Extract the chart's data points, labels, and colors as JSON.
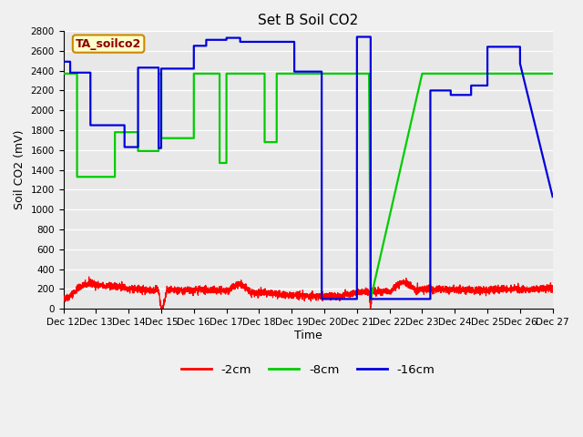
{
  "title": "Set B Soil CO2",
  "ylabel": "Soil CO2 (mV)",
  "xlabel": "Time",
  "legend_label": "TA_soilco2",
  "series_labels": [
    "-2cm",
    "-8cm",
    "-16cm"
  ],
  "series_colors": [
    "#ff0000",
    "#00cc00",
    "#0000dd"
  ],
  "background_color": "#e8e8e8",
  "fig_background": "#f0f0f0",
  "ylim": [
    0,
    2800
  ],
  "xlim": [
    0,
    15
  ],
  "xtick_labels": [
    "Dec 12",
    "Dec 13",
    "Dec 14",
    "Dec 15",
    "Dec 16",
    "Dec 17",
    "Dec 18",
    "Dec 19",
    "Dec 20",
    "Dec 21",
    "Dec 22",
    "Dec 23",
    "Dec 24",
    "Dec 25",
    "Dec 26",
    "Dec 27"
  ],
  "ytick_positions": [
    0,
    200,
    400,
    600,
    800,
    1000,
    1200,
    1400,
    1600,
    1800,
    2000,
    2200,
    2400,
    2600,
    2800
  ],
  "green_x": [
    0.0,
    0.42,
    0.421,
    1.58,
    1.581,
    2.29,
    2.291,
    2.92,
    2.921,
    3.0,
    3.001,
    4.0,
    4.001,
    4.79,
    4.791,
    5.0,
    5.001,
    6.17,
    6.171,
    6.54,
    6.541,
    7.0,
    7.001,
    8.0,
    8.001,
    9.0,
    9.001,
    9.37,
    9.371,
    9.42,
    9.421,
    11.0,
    11.001,
    12.0,
    12.001,
    13.0,
    13.001,
    14.0,
    14.001,
    15.0
  ],
  "green_y": [
    2370,
    2370,
    1330,
    1330,
    1780,
    1780,
    1590,
    1590,
    2370,
    2370,
    1720,
    1720,
    2370,
    2370,
    1470,
    1470,
    2370,
    2370,
    1680,
    1680,
    2370,
    2370,
    2370,
    2370,
    2370,
    2370,
    2370,
    2370,
    2370,
    100,
    100,
    2370,
    2370,
    2370,
    2370,
    2370,
    2370,
    2370,
    2370,
    2370
  ],
  "blue_x": [
    0.0,
    0.21,
    0.211,
    0.83,
    0.831,
    1.875,
    1.876,
    2.29,
    2.291,
    2.92,
    2.921,
    3.0,
    3.001,
    4.0,
    4.001,
    4.38,
    4.381,
    5.0,
    5.001,
    5.42,
    5.421,
    7.08,
    7.081,
    7.92,
    7.921,
    9.0,
    9.001,
    9.37,
    9.371,
    9.42,
    9.421,
    11.25,
    11.251,
    11.875,
    11.876,
    12.5,
    12.501,
    13.0,
    13.001,
    14.0,
    14.001,
    15.0
  ],
  "blue_y": [
    2490,
    2490,
    2380,
    2380,
    1850,
    1850,
    1630,
    1630,
    2430,
    2430,
    1620,
    1620,
    2420,
    2420,
    2650,
    2650,
    2710,
    2710,
    2730,
    2730,
    2690,
    2690,
    2390,
    2390,
    100,
    100,
    2740,
    2740,
    2740,
    2740,
    100,
    100,
    2200,
    2200,
    2155,
    2155,
    2250,
    2250,
    2640,
    2640,
    2470,
    1130
  ]
}
